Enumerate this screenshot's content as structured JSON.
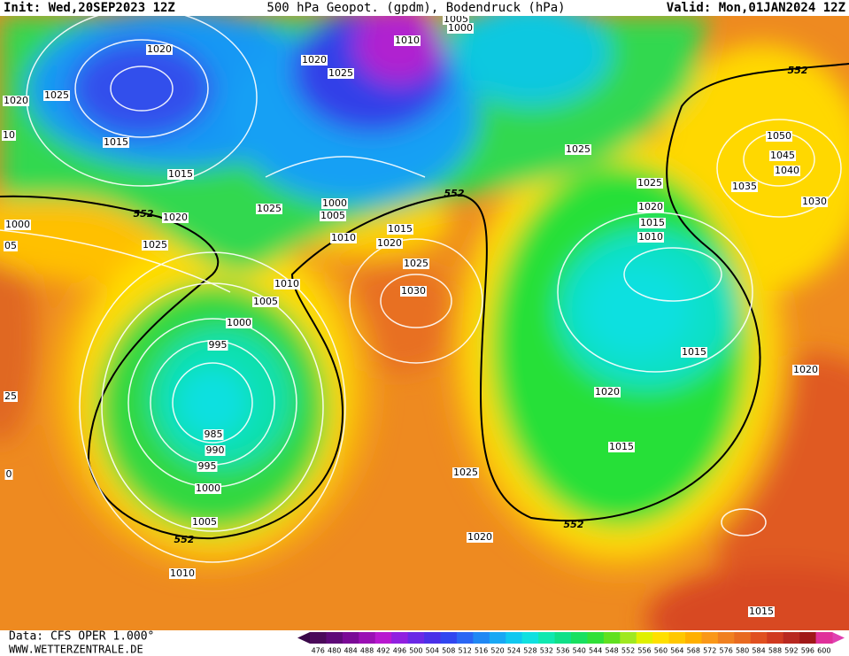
{
  "header": {
    "init": "Init: Wed,20SEP2023 12Z",
    "title": "500 hPa Geopot. (gpdm), Bodendruck (hPa)",
    "valid": "Valid: Mon,01JAN2024 12Z"
  },
  "isobar_labels": [
    "1020",
    "1025",
    "1020",
    "1015",
    "1015",
    "1020",
    "1025",
    "552",
    "1000",
    "05",
    "1020",
    "1025",
    "1010",
    "1005",
    "1000",
    "1025",
    "1000",
    "1005",
    "1010",
    "1015",
    "1020",
    "552",
    "1025",
    "1030",
    "1010",
    "1005",
    "1000",
    "995",
    "985",
    "990",
    "995",
    "1000",
    "1005",
    "552",
    "1010",
    "1025",
    "1020",
    "552",
    "1015",
    "1020",
    "1015",
    "1010",
    "1015",
    "1020",
    "1025",
    "1025",
    "552",
    "1050",
    "1045",
    "1040",
    "1035",
    "1030",
    "1020",
    "25",
    "0",
    "1015",
    "10"
  ],
  "footer": {
    "data": "Data: CFS OPER 1.000°",
    "site": "WWW.WETTERZENTRALE.DE"
  },
  "legend": {
    "values": [
      "476",
      "480",
      "484",
      "488",
      "492",
      "496",
      "500",
      "504",
      "508",
      "512",
      "516",
      "520",
      "524",
      "528",
      "532",
      "536",
      "540",
      "544",
      "548",
      "552",
      "556",
      "560",
      "564",
      "568",
      "572",
      "576",
      "580",
      "584",
      "588",
      "592",
      "596",
      "600"
    ],
    "colors": [
      "#4b0a5a",
      "#5e0a78",
      "#7a0a96",
      "#9a10b4",
      "#b818d0",
      "#9020e0",
      "#6a28e6",
      "#4a30e8",
      "#3046f0",
      "#2a66f4",
      "#2088f4",
      "#18a8f4",
      "#10c8f0",
      "#10e0e0",
      "#10e8b0",
      "#10e088",
      "#18e060",
      "#30e038",
      "#60e020",
      "#a0e820",
      "#e0f000",
      "#ffe000",
      "#ffc800",
      "#ffb000",
      "#fa9818",
      "#f08020",
      "#e86a20",
      "#e05020",
      "#d03a20",
      "#b82820",
      "#a01818",
      "#e0309a"
    ]
  }
}
